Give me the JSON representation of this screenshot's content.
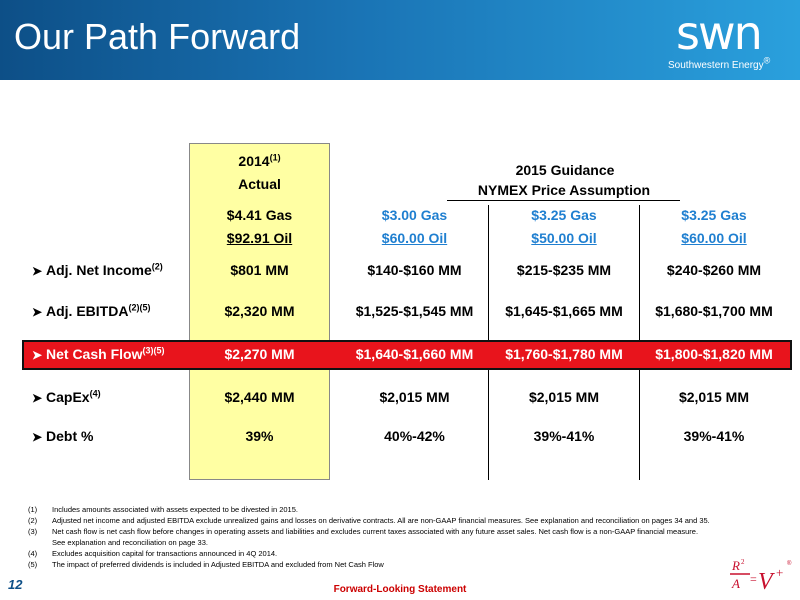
{
  "header": {
    "title": "Our Path Forward",
    "logo_word": "swn",
    "logo_sub": "Southwestern Energy"
  },
  "columns": {
    "actual": {
      "year": "2014",
      "year_sup": "(1)",
      "label": "Actual",
      "gas": "$4.41 Gas",
      "oil": "$92.91 Oil"
    },
    "guidance": {
      "title_line1": "2015 Guidance",
      "title_line2": "NYMEX Price Assumption",
      "scenarios": [
        {
          "gas": "$3.00 Gas",
          "oil": "$60.00 Oil"
        },
        {
          "gas": "$3.25 Gas",
          "oil": "$50.00 Oil"
        },
        {
          "gas": "$3.25 Gas",
          "oil": "$60.00 Oil"
        }
      ]
    }
  },
  "rows": [
    {
      "label": "Adj. Net Income",
      "sup": "(2)",
      "actual": "$801 MM",
      "values": [
        "$140-$160 MM",
        "$215-$235 MM",
        "$240-$260 MM"
      ]
    },
    {
      "label": "Adj. EBITDA",
      "sup": "(2)(5)",
      "actual": "$2,320 MM",
      "values": [
        "$1,525-$1,545 MM",
        "$1,645-$1,665 MM",
        "$1,680-$1,700 MM"
      ]
    },
    {
      "label": "Net Cash Flow",
      "sup": "(3)(5)",
      "actual": "$2,270 MM",
      "values": [
        "$1,640-$1,660 MM",
        "$1,760-$1,780 MM",
        "$1,800-$1,820 MM"
      ]
    },
    {
      "label": "CapEx",
      "sup": "(4)",
      "actual": "$2,440 MM",
      "values": [
        "$2,015 MM",
        "$2,015 MM",
        "$2,015 MM"
      ]
    },
    {
      "label": "Debt %",
      "sup": "",
      "actual": "39%",
      "values": [
        "40%-42%",
        "39%-41%",
        "39%-41%"
      ]
    }
  ],
  "footnotes": [
    {
      "n": "(1)",
      "t": "Includes amounts associated with assets expected to be divested in 2015."
    },
    {
      "n": "(2)",
      "t": "Adjusted net income and adjusted EBITDA exclude unrealized gains and losses on derivative contracts. All are non-GAAP financial measures. See explanation and reconciliation on pages 34 and 35."
    },
    {
      "n": "(3)",
      "t": "Net cash flow is net cash flow before changes in operating assets and liabilities and excludes current taxes associated with any future asset sales.  Net cash flow is a non-GAAP financial measure."
    },
    {
      "n": "",
      "t": "See explanation and reconciliation on page 33."
    },
    {
      "n": "(4)",
      "t": "Excludes acquisition capital for transactions announced in 4Q 2014."
    },
    {
      "n": "(5)",
      "t": "The impact of preferred dividends is included in Adjusted EBITDA and excluded from Net Cash Flow"
    }
  ],
  "footer": {
    "page_number": "12",
    "forward_looking": "Forward-Looking Statement"
  },
  "colors": {
    "header_dark": "#0d4f87",
    "header_light": "#2aa0dd",
    "highlight_yellow": "#ffffa3",
    "highlight_red": "#e8141c",
    "price_blue": "#1f7fd0"
  }
}
